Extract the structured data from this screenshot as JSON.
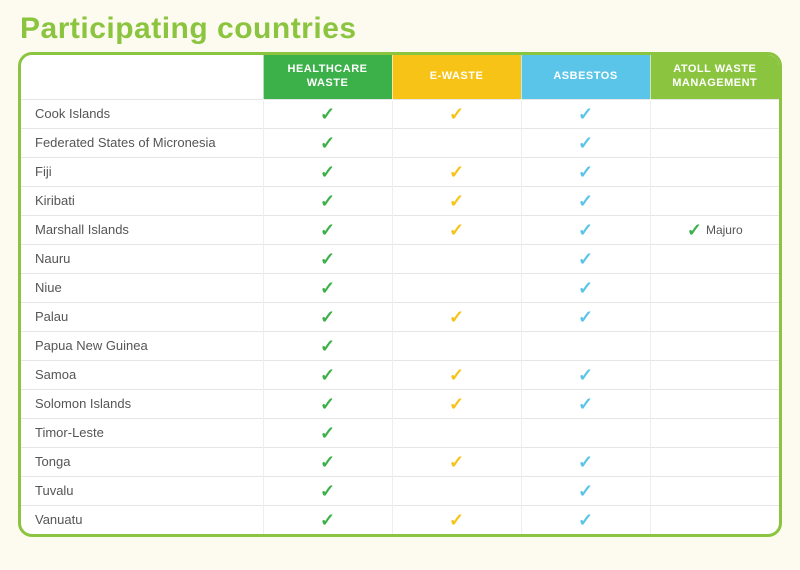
{
  "title": "Participating countries",
  "page_bg": "#fdfaef",
  "card_border_color": "#8bc53f",
  "title_color": "#8bc53f",
  "columns": [
    {
      "key": "healthcare",
      "label": "HEALTHCARE WASTE",
      "header_bg": "#3cb049",
      "tick_color": "#3cb049"
    },
    {
      "key": "ewaste",
      "label": "E-WASTE",
      "header_bg": "#f6c316",
      "tick_color": "#f6c316"
    },
    {
      "key": "asbestos",
      "label": "ASBESTOS",
      "header_bg": "#5ac5e8",
      "tick_color": "#5ac5e8"
    },
    {
      "key": "atoll",
      "label": "ATOLL WASTE MANAGEMENT",
      "header_bg": "#8bc53f",
      "tick_color": "#3cb049"
    }
  ],
  "rows": [
    {
      "country": "Cook Islands",
      "healthcare": true,
      "ewaste": true,
      "asbestos": true,
      "atoll": false
    },
    {
      "country": "Federated States of Micronesia",
      "healthcare": true,
      "ewaste": false,
      "asbestos": true,
      "atoll": false
    },
    {
      "country": "Fiji",
      "healthcare": true,
      "ewaste": true,
      "asbestos": true,
      "atoll": false
    },
    {
      "country": "Kiribati",
      "healthcare": true,
      "ewaste": true,
      "asbestos": true,
      "atoll": false
    },
    {
      "country": "Marshall Islands",
      "healthcare": true,
      "ewaste": true,
      "asbestos": true,
      "atoll": true,
      "atoll_note": "Majuro"
    },
    {
      "country": "Nauru",
      "healthcare": true,
      "ewaste": false,
      "asbestos": true,
      "atoll": false
    },
    {
      "country": "Niue",
      "healthcare": true,
      "ewaste": false,
      "asbestos": true,
      "atoll": false
    },
    {
      "country": "Palau",
      "healthcare": true,
      "ewaste": true,
      "asbestos": true,
      "atoll": false
    },
    {
      "country": "Papua New Guinea",
      "healthcare": true,
      "ewaste": false,
      "asbestos": false,
      "atoll": false
    },
    {
      "country": "Samoa",
      "healthcare": true,
      "ewaste": true,
      "asbestos": true,
      "atoll": false
    },
    {
      "country": "Solomon Islands",
      "healthcare": true,
      "ewaste": true,
      "asbestos": true,
      "atoll": false
    },
    {
      "country": "Timor-Leste",
      "healthcare": true,
      "ewaste": false,
      "asbestos": false,
      "atoll": false
    },
    {
      "country": "Tonga",
      "healthcare": true,
      "ewaste": true,
      "asbestos": true,
      "atoll": false
    },
    {
      "country": "Tuvalu",
      "healthcare": true,
      "ewaste": false,
      "asbestos": true,
      "atoll": false
    },
    {
      "country": "Vanuatu",
      "healthcare": true,
      "ewaste": true,
      "asbestos": true,
      "atoll": false
    }
  ]
}
